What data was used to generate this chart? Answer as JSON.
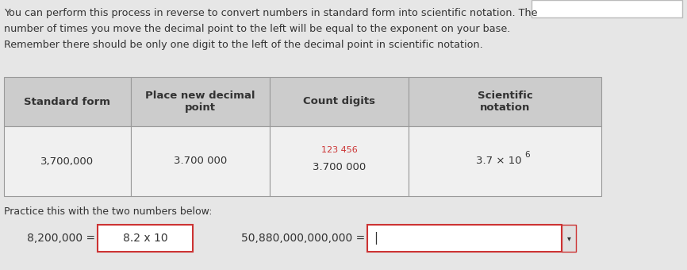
{
  "bg_color": "#e6e6e6",
  "text_color": "#333333",
  "intro_lines": [
    "You can perform this process in reverse to convert numbers in standard form into scientific notation. The",
    "number of times you move the decimal point to the left will be equal to the exponent on your base.",
    "Remember there should be only one digit to the left of the decimal point in scientific notation."
  ],
  "table_headers": [
    "Standard form",
    "Place new decimal\npoint",
    "Count digits",
    "Scientific\nnotation"
  ],
  "header_bg": "#cccccc",
  "row_bg": "#f0f0f0",
  "border_color": "#999999",
  "data_row": [
    "3,700,000",
    "3.700 000",
    "3.700 000",
    "3.7 × 10⁶"
  ],
  "count_digits_label": "123 456",
  "count_digits_color": "#cc3333",
  "practice_text": "Practice this with the two numbers below:",
  "eq1_label": "8,200,000 =",
  "eq1_content": "8.2 x 10",
  "eq2_label": "50,880,000,000,000 =",
  "box_border_color": "#cc3333",
  "top_box_border": "#bbbbbb",
  "superscript_6": "6",
  "font_size_intro": 9.2,
  "font_size_table": 9.5,
  "font_size_practice": 9.0
}
